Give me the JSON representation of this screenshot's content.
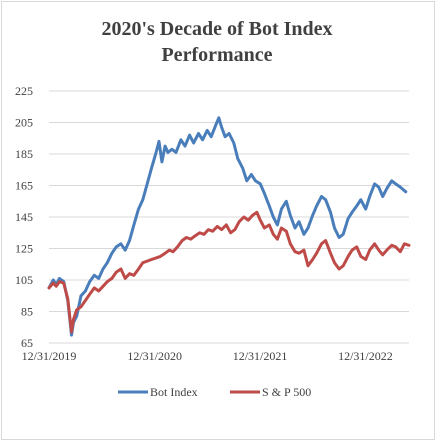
{
  "chart_data": {
    "type": "line",
    "title_line1": "2020's Decade of Bot Index",
    "title_line2": "Performance",
    "xlabel": "",
    "ylabel": "",
    "ylim": [
      65,
      225
    ],
    "y_ticks": [
      "225",
      "205",
      "185",
      "165",
      "145",
      "125",
      "105",
      "85",
      "65"
    ],
    "x_ticks": [
      "12/31/2019",
      "12/31/2020",
      "12/31/2021",
      "12/31/2022"
    ],
    "x_range": [
      "2019-12-31",
      "2023-05-31"
    ],
    "grid": "horizontal",
    "legend_position": "bottom",
    "series": [
      {
        "name": "Bot Index",
        "color": "#4a7ebb",
        "points": [
          [
            "2019-12-31",
            100
          ],
          [
            "2020-01-15",
            105
          ],
          [
            "2020-01-25",
            102
          ],
          [
            "2020-02-05",
            106
          ],
          [
            "2020-02-20",
            104
          ],
          [
            "2020-03-05",
            92
          ],
          [
            "2020-03-18",
            70
          ],
          [
            "2020-03-25",
            78
          ],
          [
            "2020-04-05",
            82
          ],
          [
            "2020-04-20",
            95
          ],
          [
            "2020-05-05",
            98
          ],
          [
            "2020-05-20",
            104
          ],
          [
            "2020-06-05",
            108
          ],
          [
            "2020-06-20",
            106
          ],
          [
            "2020-07-05",
            112
          ],
          [
            "2020-07-20",
            116
          ],
          [
            "2020-08-05",
            122
          ],
          [
            "2020-08-20",
            126
          ],
          [
            "2020-09-05",
            128
          ],
          [
            "2020-09-20",
            124
          ],
          [
            "2020-10-05",
            130
          ],
          [
            "2020-10-20",
            140
          ],
          [
            "2020-11-05",
            150
          ],
          [
            "2020-11-20",
            156
          ],
          [
            "2020-12-05",
            166
          ],
          [
            "2020-12-20",
            176
          ],
          [
            "2021-01-05",
            186
          ],
          [
            "2021-01-15",
            193
          ],
          [
            "2021-01-25",
            180
          ],
          [
            "2021-02-05",
            190
          ],
          [
            "2021-02-15",
            186
          ],
          [
            "2021-03-01",
            188
          ],
          [
            "2021-03-15",
            186
          ],
          [
            "2021-04-01",
            194
          ],
          [
            "2021-04-15",
            190
          ],
          [
            "2021-05-01",
            197
          ],
          [
            "2021-05-15",
            192
          ],
          [
            "2021-06-01",
            198
          ],
          [
            "2021-06-15",
            194
          ],
          [
            "2021-07-01",
            200
          ],
          [
            "2021-07-15",
            196
          ],
          [
            "2021-08-01",
            204
          ],
          [
            "2021-08-10",
            208
          ],
          [
            "2021-08-20",
            202
          ],
          [
            "2021-09-01",
            196
          ],
          [
            "2021-09-15",
            198
          ],
          [
            "2021-10-01",
            192
          ],
          [
            "2021-10-15",
            182
          ],
          [
            "2021-11-01",
            176
          ],
          [
            "2021-11-15",
            168
          ],
          [
            "2021-12-01",
            172
          ],
          [
            "2021-12-15",
            168
          ],
          [
            "2022-01-01",
            166
          ],
          [
            "2022-01-15",
            160
          ],
          [
            "2022-02-01",
            152
          ],
          [
            "2022-02-15",
            145
          ],
          [
            "2022-03-01",
            140
          ],
          [
            "2022-03-15",
            150
          ],
          [
            "2022-04-01",
            155
          ],
          [
            "2022-04-15",
            146
          ],
          [
            "2022-05-01",
            138
          ],
          [
            "2022-05-15",
            142
          ],
          [
            "2022-06-01",
            134
          ],
          [
            "2022-06-15",
            138
          ],
          [
            "2022-07-01",
            146
          ],
          [
            "2022-07-15",
            152
          ],
          [
            "2022-08-01",
            158
          ],
          [
            "2022-08-15",
            156
          ],
          [
            "2022-09-01",
            148
          ],
          [
            "2022-09-15",
            138
          ],
          [
            "2022-10-01",
            132
          ],
          [
            "2022-10-15",
            134
          ],
          [
            "2022-11-01",
            144
          ],
          [
            "2022-11-15",
            148
          ],
          [
            "2022-12-01",
            152
          ],
          [
            "2022-12-15",
            156
          ],
          [
            "2023-01-01",
            150
          ],
          [
            "2023-01-15",
            158
          ],
          [
            "2023-02-01",
            166
          ],
          [
            "2023-02-15",
            164
          ],
          [
            "2023-03-01",
            158
          ],
          [
            "2023-03-15",
            163
          ],
          [
            "2023-04-01",
            168
          ],
          [
            "2023-04-15",
            166
          ],
          [
            "2023-05-01",
            164
          ],
          [
            "2023-05-20",
            161
          ]
        ]
      },
      {
        "name": "S & P 500",
        "color": "#be4b48",
        "points": [
          [
            "2019-12-31",
            100
          ],
          [
            "2020-01-15",
            103
          ],
          [
            "2020-01-25",
            101
          ],
          [
            "2020-02-05",
            104
          ],
          [
            "2020-02-20",
            103
          ],
          [
            "2020-03-05",
            93
          ],
          [
            "2020-03-18",
            72
          ],
          [
            "2020-03-25",
            80
          ],
          [
            "2020-04-05",
            86
          ],
          [
            "2020-04-20",
            88
          ],
          [
            "2020-05-05",
            92
          ],
          [
            "2020-05-20",
            96
          ],
          [
            "2020-06-05",
            100
          ],
          [
            "2020-06-20",
            98
          ],
          [
            "2020-07-05",
            101
          ],
          [
            "2020-07-20",
            104
          ],
          [
            "2020-08-05",
            106
          ],
          [
            "2020-08-20",
            110
          ],
          [
            "2020-09-05",
            112
          ],
          [
            "2020-09-20",
            106
          ],
          [
            "2020-10-05",
            109
          ],
          [
            "2020-10-20",
            108
          ],
          [
            "2020-11-05",
            112
          ],
          [
            "2020-11-20",
            116
          ],
          [
            "2020-12-05",
            117
          ],
          [
            "2020-12-20",
            118
          ],
          [
            "2021-01-05",
            119
          ],
          [
            "2021-01-20",
            120
          ],
          [
            "2021-02-05",
            122
          ],
          [
            "2021-02-20",
            124
          ],
          [
            "2021-03-05",
            123
          ],
          [
            "2021-03-20",
            126
          ],
          [
            "2021-04-05",
            130
          ],
          [
            "2021-04-20",
            132
          ],
          [
            "2021-05-05",
            131
          ],
          [
            "2021-05-20",
            133
          ],
          [
            "2021-06-05",
            135
          ],
          [
            "2021-06-20",
            134
          ],
          [
            "2021-07-05",
            137
          ],
          [
            "2021-07-20",
            136
          ],
          [
            "2021-08-05",
            139
          ],
          [
            "2021-08-20",
            137
          ],
          [
            "2021-09-05",
            140
          ],
          [
            "2021-09-20",
            135
          ],
          [
            "2021-10-05",
            137
          ],
          [
            "2021-10-20",
            142
          ],
          [
            "2021-11-05",
            145
          ],
          [
            "2021-11-20",
            143
          ],
          [
            "2021-12-05",
            146
          ],
          [
            "2021-12-20",
            148
          ],
          [
            "2022-01-01",
            143
          ],
          [
            "2022-01-15",
            138
          ],
          [
            "2022-02-01",
            140
          ],
          [
            "2022-02-15",
            134
          ],
          [
            "2022-03-01",
            131
          ],
          [
            "2022-03-15",
            138
          ],
          [
            "2022-04-01",
            136
          ],
          [
            "2022-04-15",
            128
          ],
          [
            "2022-05-01",
            123
          ],
          [
            "2022-05-15",
            122
          ],
          [
            "2022-06-01",
            124
          ],
          [
            "2022-06-15",
            114
          ],
          [
            "2022-07-01",
            118
          ],
          [
            "2022-07-15",
            122
          ],
          [
            "2022-08-01",
            128
          ],
          [
            "2022-08-15",
            130
          ],
          [
            "2022-09-01",
            122
          ],
          [
            "2022-09-15",
            116
          ],
          [
            "2022-10-01",
            112
          ],
          [
            "2022-10-15",
            114
          ],
          [
            "2022-11-01",
            120
          ],
          [
            "2022-11-15",
            124
          ],
          [
            "2022-12-01",
            126
          ],
          [
            "2022-12-15",
            120
          ],
          [
            "2023-01-01",
            118
          ],
          [
            "2023-01-15",
            124
          ],
          [
            "2023-02-01",
            128
          ],
          [
            "2023-02-15",
            124
          ],
          [
            "2023-03-01",
            121
          ],
          [
            "2023-03-15",
            124
          ],
          [
            "2023-04-01",
            127
          ],
          [
            "2023-04-15",
            126
          ],
          [
            "2023-05-01",
            123
          ],
          [
            "2023-05-15",
            128
          ],
          [
            "2023-05-31",
            127
          ]
        ]
      }
    ]
  }
}
